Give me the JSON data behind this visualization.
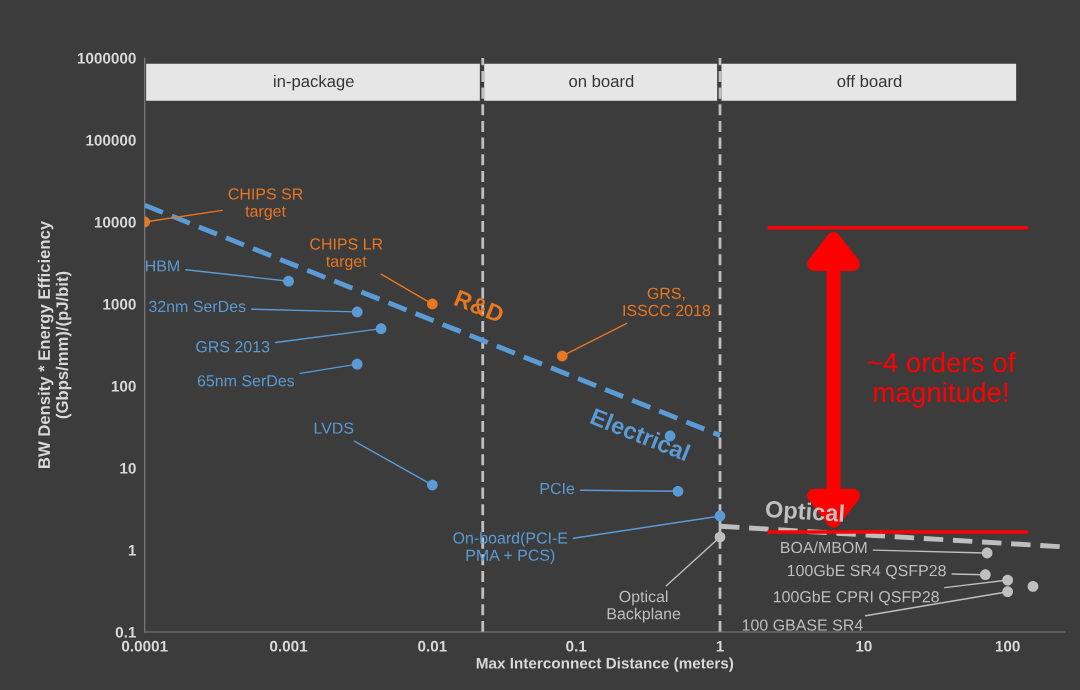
{
  "chart_data": {
    "type": "scatter",
    "xlabel": "Max Interconnect Distance (meters)",
    "ylabel": "BW Density * Energy Efficiency\n(Gbps/mm)/(pJ/bit)",
    "log": "xy",
    "marker": "circle",
    "xlim": [
      0.0001,
      250
    ],
    "xticks": [
      0.0001,
      0.001,
      0.01,
      0.1,
      1,
      10,
      100
    ],
    "ylim": [
      0.1,
      1000000
    ],
    "yticks": [
      0.1,
      1,
      10,
      100,
      1000,
      10000,
      100000,
      1000000
    ],
    "bands": [
      {
        "axis": "x",
        "from": 0.0001,
        "to": 0.0224,
        "label": "in-package",
        "color": "#e6e6e6"
      },
      {
        "axis": "x",
        "from": 0.0224,
        "to": 1,
        "label": "on board",
        "color": "#e6e6e6"
      },
      {
        "axis": "x",
        "from": 1,
        "to": 120,
        "label": "off board",
        "color": "#e6e6e6"
      }
    ],
    "ref_lines": [
      {
        "axis": "x",
        "value": 0.0224,
        "color": "#bfbfbf",
        "line_style": "dashed"
      },
      {
        "axis": "x",
        "value": 1,
        "color": "#bfbfbf",
        "line_style": "dashed"
      }
    ],
    "series": [
      {
        "type": "line",
        "name": "Electrical",
        "color": "#5b9bd5",
        "line_style": "dashed",
        "marker": "none",
        "x": [
          0.0001,
          1
        ],
        "values": [
          16000,
          25
        ]
      },
      {
        "type": "line",
        "name": "Optical",
        "color": "#bfbfbf",
        "line_style": "dashed",
        "marker": "none",
        "x": [
          1,
          230
        ],
        "values": [
          1.95,
          1.1
        ]
      },
      {
        "name": "R&D",
        "color": "#e87722",
        "x": [
          0.0001,
          0.01,
          0.08
        ],
        "values": [
          10000,
          1000,
          232
        ]
      },
      {
        "color": "#5b9bd5",
        "x": [
          0.001,
          0.003,
          0.0044,
          0.003,
          0.01,
          0.45,
          0.51,
          1
        ],
        "values": [
          1900,
          800,
          500,
          185,
          6.2,
          24.6,
          5.2,
          2.6
        ]
      },
      {
        "color": "#bfbfbf",
        "x": [
          1,
          72,
          70,
          100,
          100,
          150
        ],
        "values": [
          1.44,
          0.92,
          0.5,
          0.43,
          0.31,
          0.36
        ]
      },
      {
        "type": "line",
        "color": "#ff0000",
        "line_style": "solid",
        "marker": "none",
        "x": [
          2.2,
          135
        ],
        "values": [
          8500,
          8500
        ]
      },
      {
        "type": "line",
        "color": "#ff0000",
        "line_style": "solid",
        "marker": "none",
        "x": [
          2.2,
          135
        ],
        "values": [
          1.66,
          1.66
        ]
      }
    ],
    "annotations": [
      {
        "text": "CHIPS SR\ntarget",
        "x": 0.0001,
        "y": 10000
      },
      {
        "text": "CHIPS LR\ntarget",
        "x": 0.01,
        "y": 1000
      },
      {
        "text": "HBM",
        "x": 0.001,
        "y": 1900
      },
      {
        "text": "32nm SerDes",
        "x": 0.003,
        "y": 800
      },
      {
        "text": "GRS 2013",
        "x": 0.0044,
        "y": 500
      },
      {
        "text": "65nm SerDes",
        "x": 0.003,
        "y": 185
      },
      {
        "text": "LVDS",
        "x": 0.01,
        "y": 6.2
      },
      {
        "text": "GRS,\nISSCC 2018",
        "x": 0.08,
        "y": 232
      },
      {
        "text": "PCIe",
        "x": 0.51,
        "y": 5.2
      },
      {
        "text": "On-board(PCI-E\nPMA + PCS)",
        "x": 1,
        "y": 2.6
      },
      {
        "text": "Optical\nBackplane",
        "x": 1,
        "y": 1.44
      },
      {
        "text": "BOA/MBOM",
        "x": 72,
        "y": 0.92
      },
      {
        "text": "100GbE SR4 QSFP28",
        "x": 70,
        "y": 0.5
      },
      {
        "text": "100GbE CPRI QSFP28",
        "x": 100,
        "y": 0.43
      },
      {
        "text": "100 GBASE SR4",
        "x": 100,
        "y": 0.31
      },
      "~4 orders of magnitude!"
    ]
  }
}
